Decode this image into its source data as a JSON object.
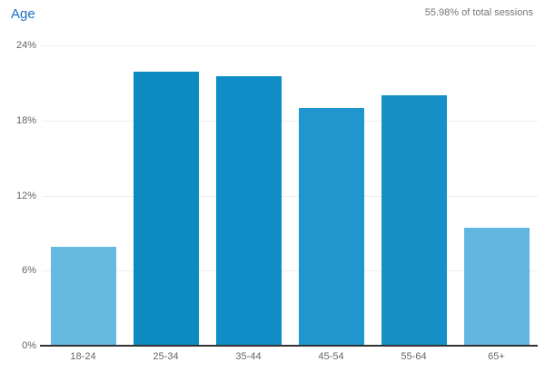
{
  "header": {
    "title": "Age",
    "sessions_note": "55.98% of total sessions"
  },
  "chart_data": {
    "type": "bar",
    "title": "Age",
    "categories": [
      "18-24",
      "25-34",
      "35-44",
      "45-54",
      "55-64",
      "65+"
    ],
    "values": [
      7.9,
      21.9,
      21.5,
      19.0,
      20.0,
      9.4
    ],
    "unit": "percent of sessions",
    "bar_colors": [
      "#66b9e0",
      "#0c8bc3",
      "#0e8dc6",
      "#2196ce",
      "#1790c8",
      "#61b7e0"
    ],
    "xlabel": "",
    "ylabel": "",
    "ylim": [
      0,
      24
    ],
    "yticks": [
      0,
      6,
      12,
      18,
      24
    ],
    "ytick_labels": [
      "0%",
      "6%",
      "12%",
      "18%",
      "24%"
    ],
    "grid": "horizontal",
    "legend": "none"
  },
  "colors": {
    "title_link": "#1b6fc0",
    "note_text": "#757575",
    "axis_text": "#666666",
    "gridline": "#eeeeee",
    "axis_line": "#333333",
    "background": "#ffffff"
  }
}
